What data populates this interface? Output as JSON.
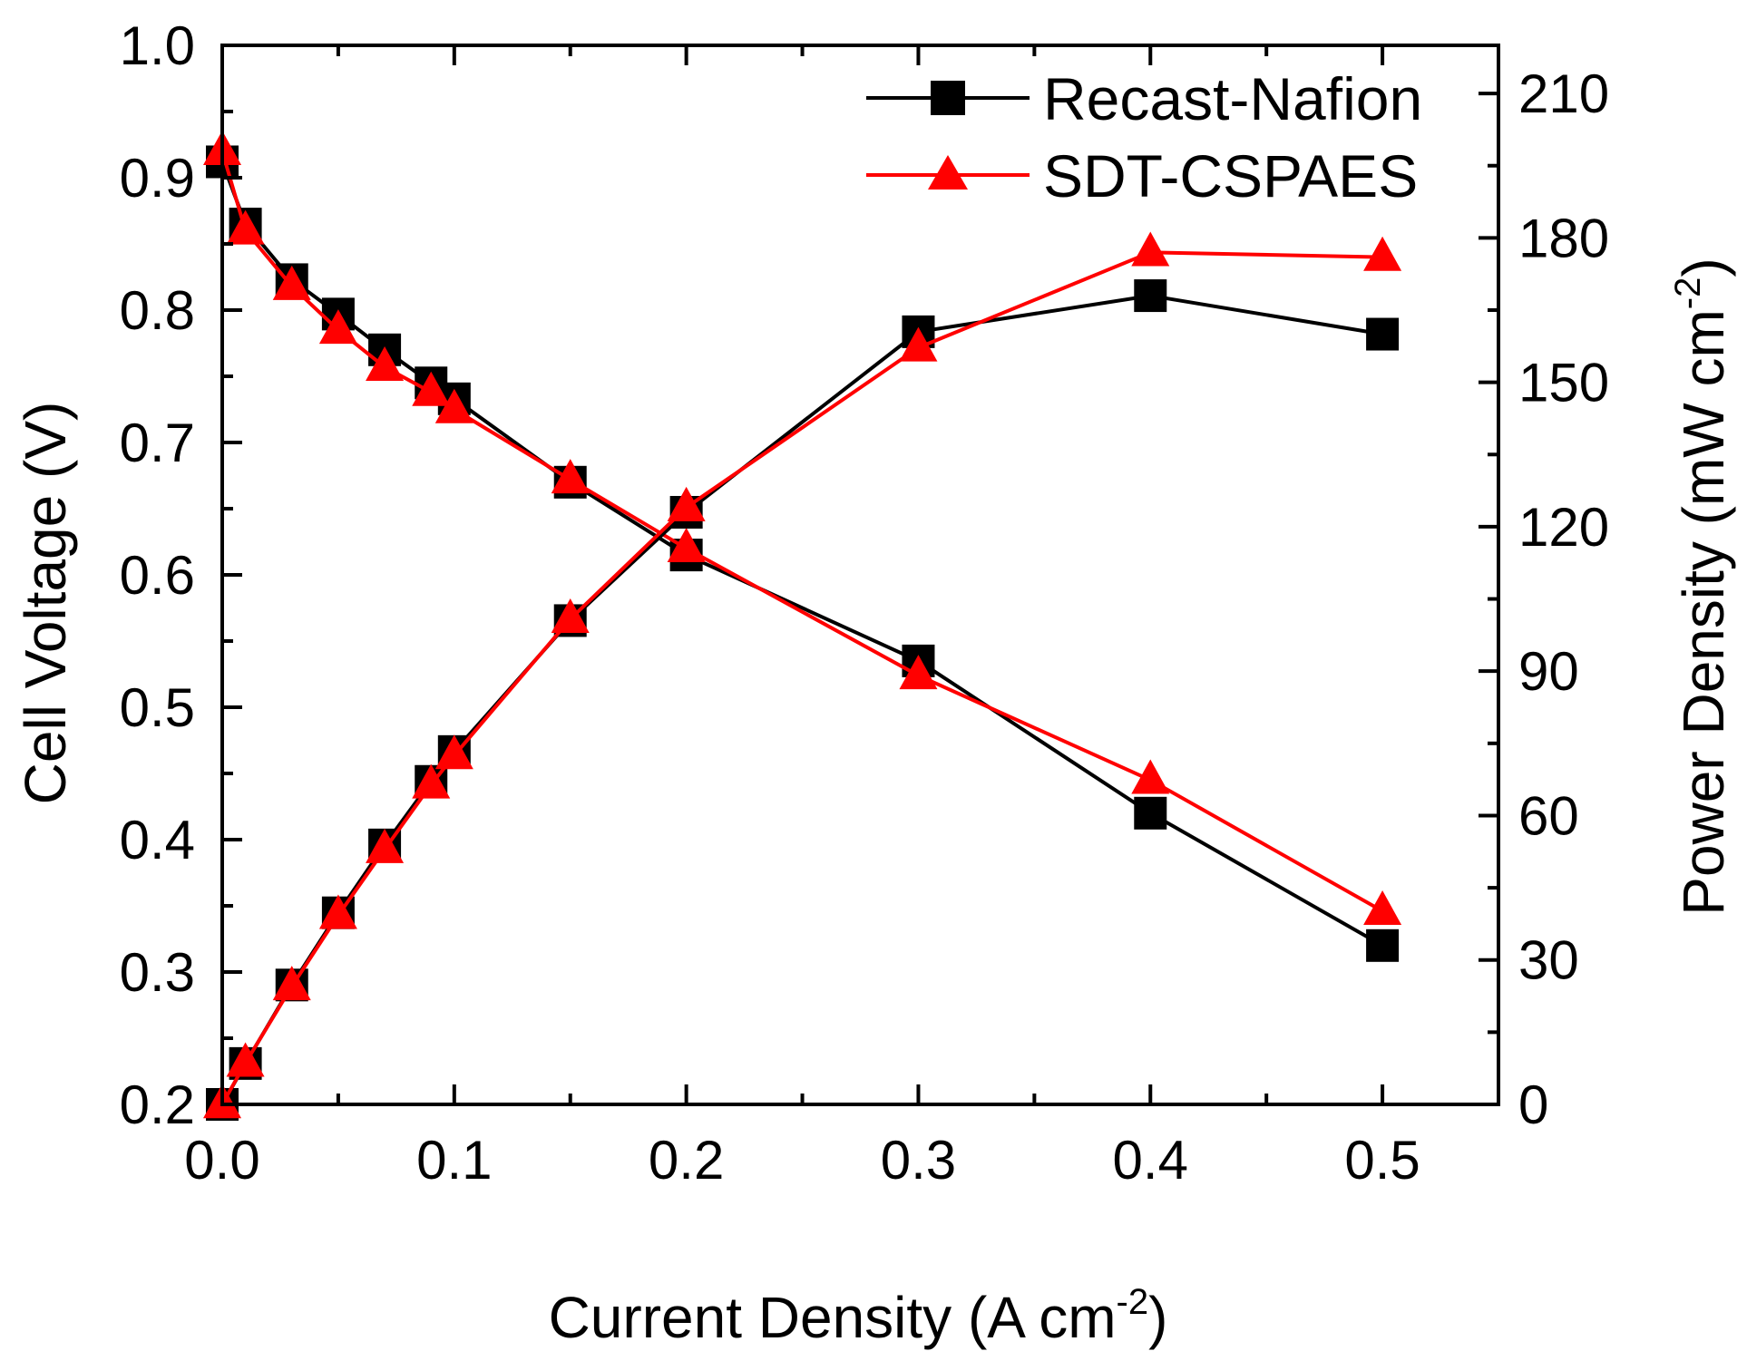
{
  "chart_data": {
    "type": "line",
    "xlabel": "Current Density (A cm",
    "xlabel_sup": "-2",
    "xlabel_end": ")",
    "ylabel": "Cell Voltage (V)",
    "y2label": "Power Density (mW cm",
    "y2label_sup": "-2",
    "y2label_end": ")",
    "xlim": [
      0.0,
      0.55
    ],
    "ylim": [
      0.2,
      1.0
    ],
    "y2lim": [
      0,
      220
    ],
    "xticks": [
      0.0,
      0.1,
      0.2,
      0.3,
      0.4,
      0.5
    ],
    "xtick_labels": [
      "0.0",
      "0.1",
      "0.2",
      "0.3",
      "0.4",
      "0.5"
    ],
    "yticks": [
      0.2,
      0.3,
      0.4,
      0.5,
      0.6,
      0.7,
      0.8,
      0.9,
      1.0
    ],
    "ytick_labels": [
      "0.2",
      "0.3",
      "0.4",
      "0.5",
      "0.6",
      "0.7",
      "0.8",
      "0.9",
      "1.0"
    ],
    "y2ticks": [
      0,
      30,
      60,
      90,
      120,
      150,
      180,
      210
    ],
    "y2tick_labels": [
      "0",
      "30",
      "60",
      "90",
      "120",
      "150",
      "180",
      "210"
    ],
    "legend_position": "top-right",
    "series": [
      {
        "name": "Recast-Nafion",
        "axis": "left",
        "kind": "voltage",
        "color": "#000000",
        "marker": "square",
        "x": [
          0.0,
          0.01,
          0.03,
          0.05,
          0.07,
          0.09,
          0.1,
          0.15,
          0.2,
          0.3,
          0.4,
          0.5
        ],
        "y": [
          0.912,
          0.865,
          0.823,
          0.797,
          0.77,
          0.745,
          0.733,
          0.67,
          0.615,
          0.535,
          0.42,
          0.32
        ]
      },
      {
        "name": "SDT-CSPAES",
        "axis": "left",
        "kind": "voltage",
        "color": "#ff0000",
        "marker": "triangle",
        "x": [
          0.0,
          0.01,
          0.03,
          0.05,
          0.07,
          0.09,
          0.1,
          0.15,
          0.2,
          0.3,
          0.4,
          0.5
        ],
        "y": [
          0.92,
          0.86,
          0.818,
          0.785,
          0.757,
          0.738,
          0.725,
          0.672,
          0.62,
          0.524,
          0.445,
          0.346
        ]
      },
      {
        "name": "Recast-Nafion",
        "axis": "right",
        "kind": "power",
        "color": "#000000",
        "marker": "square",
        "x": [
          0.0,
          0.01,
          0.03,
          0.05,
          0.07,
          0.09,
          0.1,
          0.15,
          0.2,
          0.3,
          0.4,
          0.5
        ],
        "y": [
          0,
          8.5,
          24.8,
          39.8,
          53.9,
          67.1,
          73.3,
          100.5,
          123.0,
          160.5,
          168.0,
          160.0
        ]
      },
      {
        "name": "SDT-CSPAES",
        "axis": "right",
        "kind": "power",
        "color": "#ff0000",
        "marker": "triangle",
        "x": [
          0.0,
          0.01,
          0.03,
          0.05,
          0.07,
          0.09,
          0.1,
          0.15,
          0.2,
          0.3,
          0.4,
          0.5
        ],
        "y": [
          0,
          8.6,
          24.5,
          39.3,
          53.0,
          66.4,
          72.5,
          100.8,
          124.0,
          157.2,
          177.0,
          176.0
        ]
      }
    ],
    "legend": [
      {
        "label": "Recast-Nafion",
        "color": "#000000",
        "marker": "square"
      },
      {
        "label": "SDT-CSPAES",
        "color": "#ff0000",
        "marker": "triangle"
      }
    ]
  }
}
